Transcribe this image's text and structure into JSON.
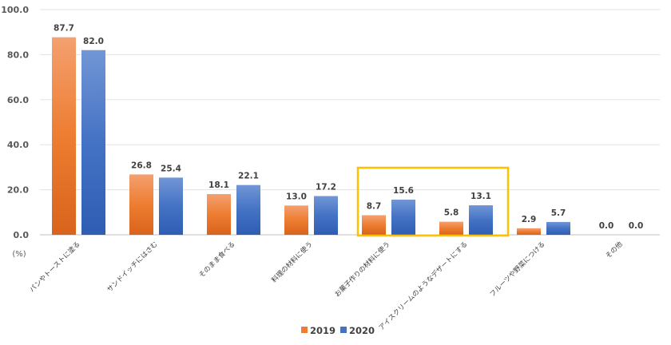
{
  "chart_data": {
    "type": "bar",
    "categories": [
      "パンやトーストに塗る",
      "サンドイッチにはさむ",
      "そのまま食べる",
      "料理の材料に使う",
      "お菓子作りの材料に使う",
      "アイスクリームのようなデザートにする",
      "フルーツや野菜につける",
      "その他"
    ],
    "series": [
      {
        "name": "2019",
        "values": [
          87.7,
          26.8,
          18.1,
          13.0,
          8.7,
          5.8,
          2.9,
          0.0
        ],
        "color": "#ED7D31"
      },
      {
        "name": "2020",
        "values": [
          82.0,
          25.4,
          22.1,
          17.2,
          15.6,
          13.1,
          5.7,
          0.0
        ],
        "color": "#4472C4"
      }
    ],
    "ylim": [
      0,
      100
    ],
    "yticks": [
      "100.0",
      "80.0",
      "60.0",
      "40.0",
      "20.0",
      "0.0"
    ],
    "ytick_values": [
      100,
      80,
      60,
      40,
      20,
      0
    ],
    "unit_label": "(%)",
    "grid": true,
    "legend": "bottom-center",
    "highlight": {
      "categories": [
        4,
        5
      ],
      "color": "#FFC000"
    }
  }
}
